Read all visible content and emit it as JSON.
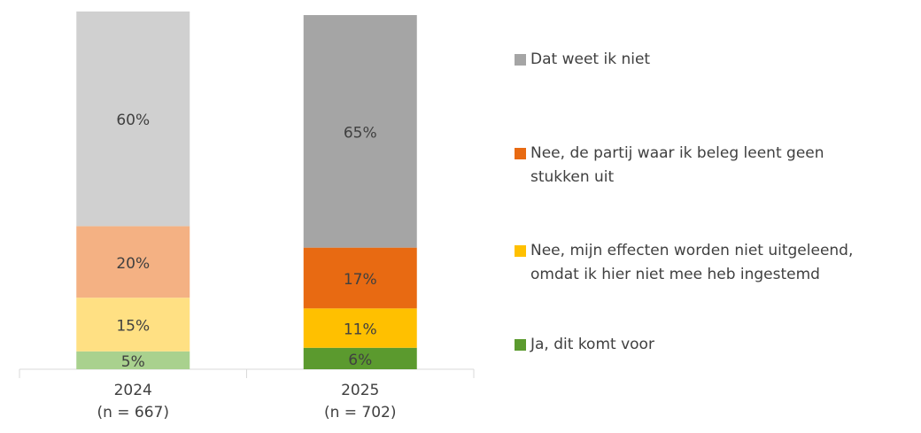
{
  "chart_data": {
    "type": "stacked_bar",
    "categories": [
      "2024",
      "2025"
    ],
    "category_notes": [
      "(n = 667)",
      "(n = 702)"
    ],
    "ylim": [
      0,
      100
    ],
    "series": [
      {
        "name": "Ja, dit komt voor",
        "color": "#5b9a2e",
        "colors": [
          "#a9d18e",
          "#5b9a2e"
        ],
        "values": [
          5,
          6
        ],
        "value_labels": [
          "5%",
          "6%"
        ]
      },
      {
        "name": "Nee, mijn effecten worden niet uitgeleend, omdat ik hier niet mee heb ingestemd",
        "color": "#ffc000",
        "colors": [
          "#ffe083",
          "#ffc000"
        ],
        "values": [
          15,
          11
        ],
        "value_labels": [
          "15%",
          "11%"
        ]
      },
      {
        "name": "Nee, de partij waar ik beleg leent geen stukken uit",
        "color": "#e86a12",
        "colors": [
          "#f4b183",
          "#e86a12"
        ],
        "values": [
          20,
          17
        ],
        "value_labels": [
          "20%",
          "17%"
        ]
      },
      {
        "name": "Dat weet ik niet",
        "color": "#a5a5a5",
        "colors": [
          "#d0d0d0",
          "#a5a5a5"
        ],
        "values": [
          60,
          65
        ],
        "value_labels": [
          "60%",
          "65%"
        ]
      }
    ]
  }
}
